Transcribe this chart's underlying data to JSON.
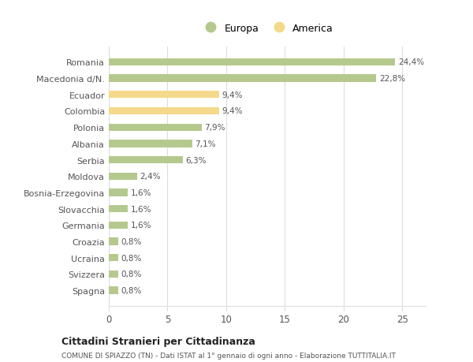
{
  "categories": [
    "Spagna",
    "Svizzera",
    "Ucraina",
    "Croazia",
    "Germania",
    "Slovacchia",
    "Bosnia-Erzegovina",
    "Moldova",
    "Serbia",
    "Albania",
    "Polonia",
    "Colombia",
    "Ecuador",
    "Macedonia d/N.",
    "Romania"
  ],
  "values": [
    0.8,
    0.8,
    0.8,
    0.8,
    1.6,
    1.6,
    1.6,
    2.4,
    6.3,
    7.1,
    7.9,
    9.4,
    9.4,
    22.8,
    24.4
  ],
  "labels": [
    "0,8%",
    "0,8%",
    "0,8%",
    "0,8%",
    "1,6%",
    "1,6%",
    "1,6%",
    "2,4%",
    "6,3%",
    "7,1%",
    "7,9%",
    "9,4%",
    "9,4%",
    "22,8%",
    "24,4%"
  ],
  "colors": [
    "#b5c98e",
    "#b5c98e",
    "#b5c98e",
    "#b5c98e",
    "#b5c98e",
    "#b5c98e",
    "#b5c98e",
    "#b5c98e",
    "#b5c98e",
    "#b5c98e",
    "#b5c98e",
    "#f5d98b",
    "#f5d98b",
    "#b5c98e",
    "#b5c98e"
  ],
  "europa_color": "#b5c98e",
  "america_color": "#f5d98b",
  "xlim": [
    0,
    27
  ],
  "xticks": [
    0,
    5,
    10,
    15,
    20,
    25
  ],
  "title": "Cittadini Stranieri per Cittadinanza",
  "subtitle": "COMUNE DI SPIAZZO (TN) - Dati ISTAT al 1° gennaio di ogni anno - Elaborazione TUTTITALIA.IT",
  "background_color": "#ffffff",
  "grid_color": "#dddddd",
  "bar_height": 0.45,
  "legend_europa": "Europa",
  "legend_america": "America"
}
